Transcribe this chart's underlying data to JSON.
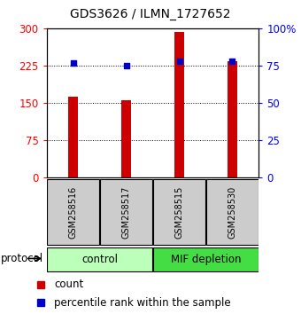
{
  "title": "GDS3626 / ILMN_1727652",
  "samples": [
    "GSM258516",
    "GSM258517",
    "GSM258515",
    "GSM258530"
  ],
  "counts": [
    163,
    155,
    293,
    233
  ],
  "percentiles": [
    77,
    75,
    78,
    78
  ],
  "bar_color": "#cc0000",
  "dot_color": "#0000cc",
  "left_ylim": [
    0,
    300
  ],
  "right_ylim": [
    0,
    100
  ],
  "left_yticks": [
    0,
    75,
    150,
    225,
    300
  ],
  "right_yticks": [
    0,
    25,
    50,
    75,
    100
  ],
  "left_yticklabels": [
    "0",
    "75",
    "150",
    "225",
    "300"
  ],
  "right_yticklabels": [
    "0",
    "25",
    "50",
    "75",
    "100%"
  ],
  "groups": [
    {
      "label": "control",
      "indices": [
        0,
        1
      ],
      "color": "#bbffbb"
    },
    {
      "label": "MIF depletion",
      "indices": [
        2,
        3
      ],
      "color": "#44dd44"
    }
  ],
  "protocol_label": "protocol",
  "legend_count_label": "count",
  "legend_pct_label": "percentile rank within the sample",
  "sample_box_color": "#cccccc",
  "background_color": "#ffffff",
  "bar_width": 0.18
}
